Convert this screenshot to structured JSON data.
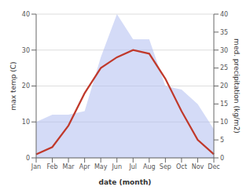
{
  "chart_data": {
    "type": "line",
    "xlabel": "date (month)",
    "ylabel": "max temp (C)",
    "y2label": "med. precipitation (kg/m2)",
    "categories": [
      "Jan",
      "Feb",
      "Mar",
      "Apr",
      "May",
      "Jun",
      "Jul",
      "Aug",
      "Sep",
      "Oct",
      "Nov",
      "Dec"
    ],
    "series": [
      {
        "type": "area",
        "color": "#b0bef0",
        "axis": "y2",
        "values": [
          10,
          12,
          12,
          13,
          28,
          40,
          33,
          33,
          20,
          19,
          15,
          8
        ]
      },
      {
        "type": "line",
        "color": "#c0392b",
        "values": [
          1,
          3,
          9,
          18,
          25,
          28,
          30,
          29,
          22,
          13,
          5,
          1
        ]
      }
    ],
    "ylim": [
      0,
      40
    ],
    "yticks": [
      0,
      10,
      20,
      30,
      40
    ],
    "y2lim": [
      0,
      40
    ],
    "y2ticks": [
      0,
      5,
      10,
      15,
      20,
      25,
      30,
      35,
      40
    ],
    "grid": true
  }
}
